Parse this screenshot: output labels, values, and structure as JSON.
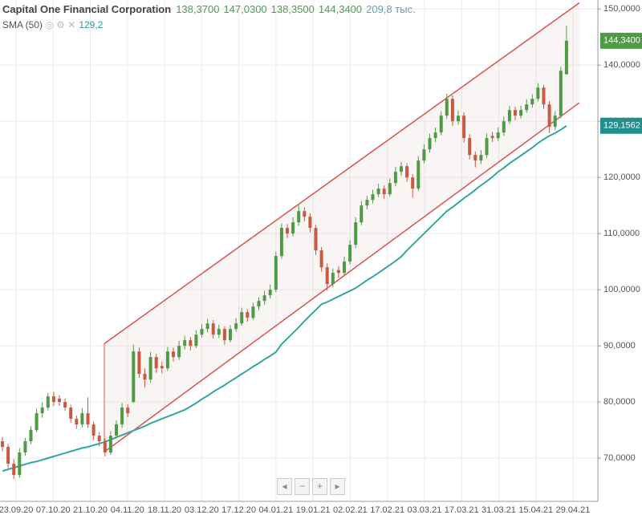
{
  "chart_data": {
    "type": "candlestick",
    "title": "Capital One Financial Corporation",
    "header": {
      "open": "138,3700",
      "high": "147,0300",
      "low": "138,3500",
      "close": "144,3400",
      "volume": "209,8 тыс."
    },
    "indicator": {
      "name": "SMA (50)",
      "value": "129,2",
      "last_label": "129,1562",
      "color": "#35a5a0"
    },
    "x_labels": [
      "23.09.20",
      "07.10.20",
      "21.10.20",
      "04.11.20",
      "18.11.20",
      "03.12.20",
      "17.12.20",
      "04.01.21",
      "19.01.21",
      "02.02.21",
      "17.02.21",
      "03.03.21",
      "17.03.21",
      "31.03.21",
      "15.04.21",
      "29.04.21"
    ],
    "ylim": [
      62.3,
      151.6
    ],
    "yticks": [
      {
        "value": 70,
        "label": "70,0000"
      },
      {
        "value": 80,
        "label": "80,0000"
      },
      {
        "value": 90,
        "label": "90,0000"
      },
      {
        "value": 100,
        "label": "100,0000"
      },
      {
        "value": 110,
        "label": "110,0000"
      },
      {
        "value": 120,
        "label": "120,0000"
      },
      {
        "value": 130,
        "label": "130,0000"
      },
      {
        "value": 140,
        "label": "140,0000"
      },
      {
        "value": 150,
        "label": "150,0000"
      }
    ],
    "grid": true,
    "up_color": "#4f9a45",
    "down_color": "#c9593f",
    "candles": [
      [
        73,
        73.8,
        71.2,
        72
      ],
      [
        72,
        72.5,
        68.2,
        69
      ],
      [
        69,
        69.8,
        66.3,
        67
      ],
      [
        67,
        71.8,
        66.5,
        71
      ],
      [
        71,
        73.6,
        70.4,
        73
      ],
      [
        73,
        75.7,
        72.5,
        75
      ],
      [
        75,
        78.8,
        74.6,
        78
      ],
      [
        78,
        79.9,
        77.2,
        79
      ],
      [
        79,
        81.6,
        78.5,
        81
      ],
      [
        81,
        81.8,
        79.3,
        80
      ],
      [
        80.6,
        81.2,
        79.3,
        80
      ],
      [
        80,
        80.6,
        78.4,
        79
      ],
      [
        79,
        79.5,
        76.3,
        77
      ],
      [
        77,
        77.6,
        75.2,
        76
      ],
      [
        76,
        78.9,
        75.5,
        78
      ],
      [
        78,
        80.8,
        75.4,
        76
      ],
      [
        76,
        76.5,
        73.2,
        74
      ],
      [
        74,
        74.6,
        72.1,
        73
      ],
      [
        73,
        73.5,
        70.3,
        71
      ],
      [
        71,
        74.8,
        70.6,
        74
      ],
      [
        74,
        76.7,
        73.5,
        76
      ],
      [
        76,
        79.8,
        75.4,
        79
      ],
      [
        79,
        79.6,
        77.3,
        78
      ],
      [
        80,
        90.2,
        79.8,
        89
      ],
      [
        89,
        89.7,
        84.3,
        85
      ],
      [
        85,
        86,
        82.6,
        84
      ],
      [
        84,
        88.9,
        83.5,
        88
      ],
      [
        88,
        88.6,
        85.2,
        86
      ],
      [
        86.4,
        87.2,
        85.1,
        86
      ],
      [
        86,
        89.8,
        85.5,
        89
      ],
      [
        89,
        89.7,
        87.2,
        88
      ],
      [
        88,
        90.9,
        87.5,
        90
      ],
      [
        90,
        91.8,
        89.4,
        91
      ],
      [
        91,
        91.6,
        89.2,
        90
      ],
      [
        90,
        92.8,
        89.6,
        92
      ],
      [
        92,
        93.9,
        91.5,
        93
      ],
      [
        93,
        94.8,
        92.4,
        94
      ],
      [
        94,
        94.6,
        91.3,
        92
      ],
      [
        92,
        93.8,
        91.4,
        93
      ],
      [
        93,
        93.5,
        90.2,
        91
      ],
      [
        91,
        93.7,
        90.6,
        93
      ],
      [
        93,
        94.9,
        92.5,
        94
      ],
      [
        94,
        96.8,
        93.6,
        96
      ],
      [
        96,
        96.5,
        94.3,
        95
      ],
      [
        95,
        97.7,
        94.6,
        97
      ],
      [
        97,
        98.6,
        96.4,
        98
      ],
      [
        98,
        99.8,
        97.3,
        99
      ],
      [
        99,
        100.9,
        98.4,
        100
      ],
      [
        100,
        106.8,
        99.6,
        106
      ],
      [
        106,
        111.8,
        105.5,
        111
      ],
      [
        111,
        111.7,
        109.2,
        110
      ],
      [
        110,
        112.9,
        109.5,
        112
      ],
      [
        112,
        115.3,
        111.4,
        114
      ],
      [
        114,
        114.7,
        112.2,
        113
      ],
      [
        113,
        113.6,
        110.2,
        111
      ],
      [
        111,
        111.5,
        106.2,
        107
      ],
      [
        107,
        107.6,
        103.2,
        104
      ],
      [
        104,
        104.7,
        99.8,
        101
      ],
      [
        101,
        103.8,
        100.4,
        103
      ],
      [
        103.5,
        104.2,
        102.1,
        103
      ],
      [
        103,
        105.9,
        102.4,
        105
      ],
      [
        105,
        108.8,
        104.5,
        108
      ],
      [
        108,
        112.9,
        107.4,
        112
      ],
      [
        112,
        115.8,
        111.5,
        115
      ],
      [
        115,
        116.7,
        114.3,
        116
      ],
      [
        116,
        117.8,
        115.4,
        117
      ],
      [
        117,
        118.9,
        116.5,
        118
      ],
      [
        118,
        118.6,
        116.2,
        117
      ],
      [
        117,
        119.8,
        116.6,
        119
      ],
      [
        119,
        121.9,
        118.4,
        121
      ],
      [
        121,
        122.8,
        120.3,
        122
      ],
      [
        122,
        122.5,
        119.2,
        120
      ],
      [
        120,
        120.6,
        116.4,
        118
      ],
      [
        118,
        123.8,
        117.6,
        123
      ],
      [
        123,
        125.9,
        122.5,
        125
      ],
      [
        125,
        127.8,
        124.4,
        127
      ],
      [
        127,
        128.9,
        126.3,
        128
      ],
      [
        128,
        131.8,
        127.5,
        131
      ],
      [
        131,
        134.9,
        130.4,
        134
      ],
      [
        134,
        134.6,
        129.2,
        130
      ],
      [
        130,
        131.9,
        129.4,
        131
      ],
      [
        131,
        131.6,
        126.2,
        127
      ],
      [
        127,
        127.7,
        123.2,
        124
      ],
      [
        124,
        124.6,
        121.8,
        123
      ],
      [
        123,
        124.9,
        122.4,
        124
      ],
      [
        124,
        127.8,
        123.5,
        127
      ],
      [
        127.4,
        128.1,
        126.3,
        127
      ],
      [
        127,
        128.9,
        126.5,
        128
      ],
      [
        128,
        130.8,
        127.4,
        130
      ],
      [
        130,
        132.7,
        129.5,
        132
      ],
      [
        132,
        132.6,
        130.2,
        131
      ],
      [
        131,
        132.8,
        130.5,
        132
      ],
      [
        132,
        133.9,
        131.5,
        133
      ],
      [
        133,
        134.8,
        132.4,
        134
      ],
      [
        134,
        136.8,
        133.5,
        136
      ],
      [
        136,
        136.5,
        132.2,
        133
      ],
      [
        133,
        133.6,
        127.9,
        129
      ],
      [
        129,
        131.8,
        128.4,
        131
      ],
      [
        131,
        139.7,
        130.5,
        139
      ],
      [
        138.37,
        147.03,
        138.35,
        144.34
      ]
    ],
    "sma_values": [
      67.7,
      68.0,
      68.3,
      68.6,
      68.9,
      69.2,
      69.4,
      69.7,
      70.0,
      70.3,
      70.6,
      70.9,
      71.2,
      71.5,
      71.8,
      72.0,
      72.3,
      72.6,
      72.9,
      73.3,
      73.7,
      74.1,
      74.5,
      74.9,
      75.3,
      75.7,
      76.2,
      76.6,
      77.0,
      77.4,
      77.8,
      78.2,
      78.6,
      79.2,
      79.8,
      80.5,
      81.1,
      81.8,
      82.4,
      83.0,
      83.7,
      84.3,
      85.0,
      85.6,
      86.3,
      86.9,
      87.6,
      88.2,
      88.9,
      90.3,
      91.3,
      92.3,
      93.3,
      94.4,
      95.4,
      96.4,
      97.4,
      97.8,
      98.3,
      98.8,
      99.3,
      99.8,
      100.3,
      101.0,
      101.7,
      102.3,
      103.0,
      103.7,
      104.4,
      105.1,
      105.9,
      107.0,
      108.0,
      109.0,
      110.0,
      111.0,
      112.0,
      113.0,
      114.0,
      114.7,
      115.5,
      116.3,
      117.0,
      117.8,
      118.6,
      119.3,
      120.1,
      121.0,
      121.7,
      122.5,
      123.2,
      123.9,
      124.6,
      125.3,
      126.1,
      126.8,
      127.4,
      127.9,
      128.5,
      129.2
    ],
    "channel": {
      "color": "#d9534f",
      "upper": [
        90.4,
        151.1
      ],
      "lower": [
        71.1,
        133.3
      ]
    }
  }
}
